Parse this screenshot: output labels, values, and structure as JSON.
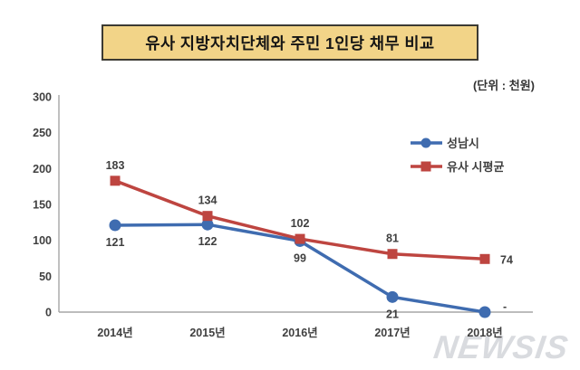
{
  "chart_data": {
    "type": "line",
    "title": "유사 지방자치단체와 주민 1인당 채무 비교",
    "unit_label": "(단위 : 천원)",
    "categories": [
      "2014년",
      "2015년",
      "2016년",
      "2017년",
      "2018년"
    ],
    "series": [
      {
        "name": "성남시",
        "color": "#3F6CB0",
        "marker": "circle",
        "values": [
          121,
          122,
          99,
          21,
          0
        ],
        "data_labels": [
          "121",
          "122",
          "99",
          "21",
          "-"
        ],
        "label_positions": [
          "below",
          "below",
          "below",
          "below",
          "right-up"
        ]
      },
      {
        "name": "유사 시평균",
        "color": "#BE4540",
        "marker": "square",
        "values": [
          183,
          134,
          102,
          81,
          74
        ],
        "data_labels": [
          "183",
          "134",
          "102",
          "81",
          "74"
        ],
        "label_positions": [
          "above",
          "above",
          "above",
          "above",
          "right"
        ]
      }
    ],
    "ylim": [
      0,
      300
    ],
    "yticks": [
      0,
      50,
      100,
      150,
      200,
      250,
      300
    ],
    "grid": false,
    "legend_position": "right-top",
    "axis_color": "#A6A6A6",
    "label_color": "#404040"
  },
  "watermark": {
    "text": "NEWSIS",
    "color": "#D9DBDF"
  }
}
